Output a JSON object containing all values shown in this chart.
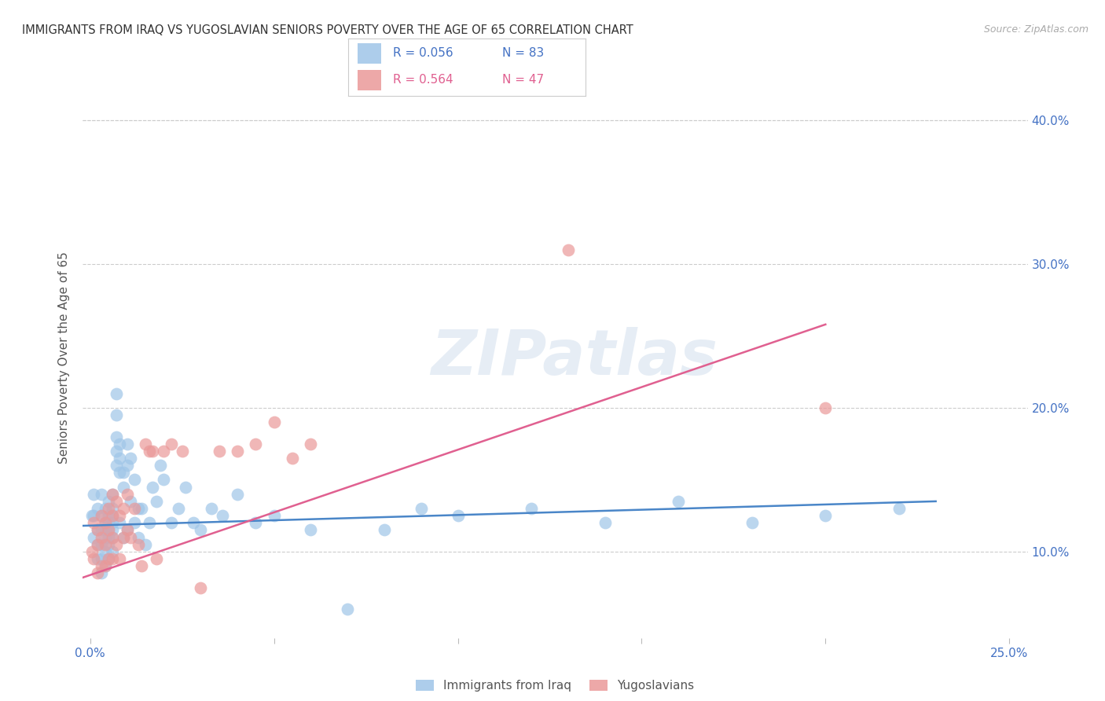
{
  "title": "IMMIGRANTS FROM IRAQ VS YUGOSLAVIAN SENIORS POVERTY OVER THE AGE OF 65 CORRELATION CHART",
  "source": "Source: ZipAtlas.com",
  "ylabel": "Seniors Poverty Over the Age of 65",
  "x_tick_vals": [
    0.0,
    0.05,
    0.1,
    0.15,
    0.2,
    0.25
  ],
  "x_tick_labels": [
    "0.0%",
    "",
    "",
    "",
    "",
    "25.0%"
  ],
  "y_tick_vals": [
    0.1,
    0.2,
    0.3,
    0.4
  ],
  "y_tick_labels": [
    "10.0%",
    "20.0%",
    "30.0%",
    "40.0%"
  ],
  "xlim": [
    -0.002,
    0.255
  ],
  "ylim": [
    0.04,
    0.43
  ],
  "legend1_r": "R = 0.056",
  "legend1_n": "N = 83",
  "legend2_r": "R = 0.564",
  "legend2_n": "N = 47",
  "legend_label1": "Immigrants from Iraq",
  "legend_label2": "Yugoslavians",
  "blue_color": "#9fc5e8",
  "pink_color": "#ea9999",
  "line_blue": "#4a86c8",
  "line_pink": "#e06090",
  "text_blue": "#4472c4",
  "text_pink": "#e06090",
  "watermark": "ZIPatlas",
  "iraq_x": [
    0.0005,
    0.001,
    0.001,
    0.001,
    0.002,
    0.002,
    0.002,
    0.002,
    0.003,
    0.003,
    0.003,
    0.003,
    0.003,
    0.003,
    0.004,
    0.004,
    0.004,
    0.004,
    0.004,
    0.004,
    0.005,
    0.005,
    0.005,
    0.005,
    0.005,
    0.005,
    0.005,
    0.006,
    0.006,
    0.006,
    0.006,
    0.006,
    0.006,
    0.006,
    0.007,
    0.007,
    0.007,
    0.007,
    0.007,
    0.008,
    0.008,
    0.008,
    0.008,
    0.009,
    0.009,
    0.009,
    0.01,
    0.01,
    0.01,
    0.011,
    0.011,
    0.012,
    0.012,
    0.013,
    0.013,
    0.014,
    0.015,
    0.016,
    0.017,
    0.018,
    0.019,
    0.02,
    0.022,
    0.024,
    0.026,
    0.028,
    0.03,
    0.033,
    0.036,
    0.04,
    0.045,
    0.05,
    0.06,
    0.07,
    0.08,
    0.09,
    0.1,
    0.12,
    0.14,
    0.16,
    0.18,
    0.2,
    0.22
  ],
  "iraq_y": [
    0.125,
    0.14,
    0.125,
    0.11,
    0.13,
    0.115,
    0.105,
    0.095,
    0.14,
    0.125,
    0.115,
    0.105,
    0.095,
    0.085,
    0.13,
    0.12,
    0.115,
    0.11,
    0.1,
    0.09,
    0.135,
    0.125,
    0.12,
    0.115,
    0.11,
    0.105,
    0.095,
    0.14,
    0.13,
    0.125,
    0.12,
    0.115,
    0.11,
    0.1,
    0.21,
    0.195,
    0.18,
    0.17,
    0.16,
    0.175,
    0.165,
    0.155,
    0.12,
    0.155,
    0.145,
    0.11,
    0.175,
    0.16,
    0.115,
    0.165,
    0.135,
    0.15,
    0.12,
    0.13,
    0.11,
    0.13,
    0.105,
    0.12,
    0.145,
    0.135,
    0.16,
    0.15,
    0.12,
    0.13,
    0.145,
    0.12,
    0.115,
    0.13,
    0.125,
    0.14,
    0.12,
    0.125,
    0.115,
    0.06,
    0.115,
    0.13,
    0.125,
    0.13,
    0.12,
    0.135,
    0.12,
    0.125,
    0.13
  ],
  "yugo_x": [
    0.0005,
    0.001,
    0.001,
    0.002,
    0.002,
    0.002,
    0.003,
    0.003,
    0.003,
    0.004,
    0.004,
    0.004,
    0.005,
    0.005,
    0.005,
    0.006,
    0.006,
    0.006,
    0.006,
    0.007,
    0.007,
    0.008,
    0.008,
    0.009,
    0.009,
    0.01,
    0.01,
    0.011,
    0.012,
    0.013,
    0.014,
    0.015,
    0.016,
    0.017,
    0.018,
    0.02,
    0.022,
    0.025,
    0.03,
    0.035,
    0.04,
    0.045,
    0.05,
    0.055,
    0.06,
    0.13,
    0.2
  ],
  "yugo_y": [
    0.1,
    0.12,
    0.095,
    0.115,
    0.105,
    0.085,
    0.125,
    0.11,
    0.09,
    0.12,
    0.105,
    0.09,
    0.13,
    0.115,
    0.095,
    0.14,
    0.125,
    0.11,
    0.095,
    0.135,
    0.105,
    0.125,
    0.095,
    0.13,
    0.11,
    0.14,
    0.115,
    0.11,
    0.13,
    0.105,
    0.09,
    0.175,
    0.17,
    0.17,
    0.095,
    0.17,
    0.175,
    0.17,
    0.075,
    0.17,
    0.17,
    0.175,
    0.19,
    0.165,
    0.175,
    0.31,
    0.2
  ],
  "iraq_line_x0": -0.002,
  "iraq_line_x1": 0.23,
  "iraq_line_y0": 0.118,
  "iraq_line_y1": 0.135,
  "yugo_line_x0": -0.002,
  "yugo_line_x1": 0.2,
  "yugo_line_y0": 0.082,
  "yugo_line_y1": 0.258
}
